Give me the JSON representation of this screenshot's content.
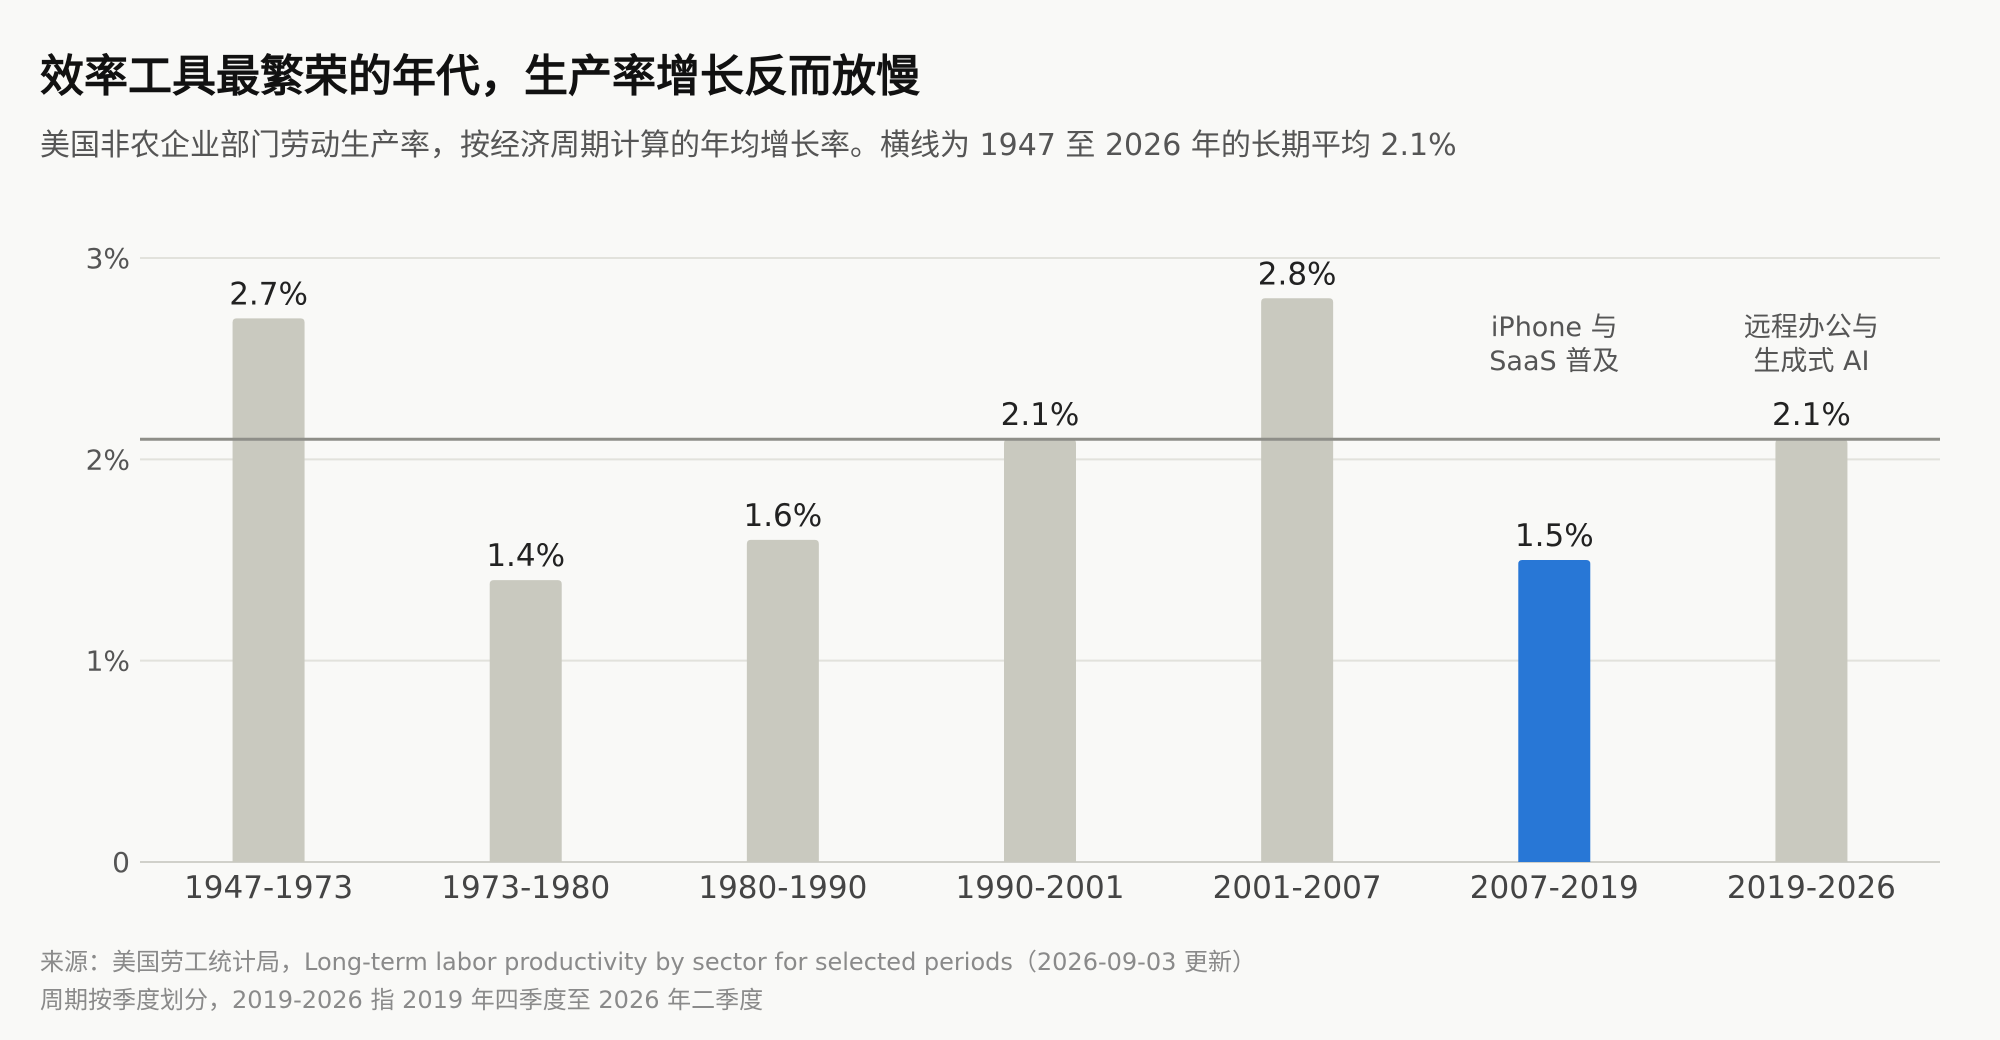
{
  "title": "效率工具最繁荣的年代，生产率增长反而放慢",
  "subtitle": "美国非农企业部门劳动生产率，按经济周期计算的年均增长率。横线为 1947 至 2026 年的长期平均 2.1%",
  "footer": {
    "line1": "来源：美国劳工统计局，Long-term labor productivity by sector for selected periods（2026-09-03 更新）",
    "line2": "周期按季度划分，2019-2026 指 2019 年四季度至 2026 年二季度"
  },
  "colors": {
    "bar_default": "#c9c9bf",
    "bar_highlight": "#2877d6",
    "average_line": "#8e8e88",
    "grid": "#e2e2dc",
    "axis_text": "#555555",
    "value_text": "#222222",
    "annotation_text": "#555555"
  },
  "chart_data": {
    "type": "bar",
    "categories": [
      "1947-1973",
      "1973-1980",
      "1980-1990",
      "1990-2001",
      "2001-2007",
      "2007-2019",
      "2019-2026"
    ],
    "values": [
      2.7,
      1.4,
      1.6,
      2.1,
      2.8,
      1.5,
      2.1
    ],
    "value_labels": [
      "2.7%",
      "1.4%",
      "1.6%",
      "2.1%",
      "2.8%",
      "1.5%",
      "2.1%"
    ],
    "highlight_index": 5,
    "ylim": [
      0,
      3
    ],
    "yticks": [
      {
        "value": 0,
        "label": "0"
      },
      {
        "value": 1,
        "label": "1%"
      },
      {
        "value": 2,
        "label": "2%"
      },
      {
        "value": 3,
        "label": "3%"
      }
    ],
    "reference_line": 2.1,
    "grid": true,
    "annotations": [
      {
        "index": 5,
        "lines": [
          "iPhone 与",
          "SaaS 普及"
        ]
      },
      {
        "index": 6,
        "lines": [
          "远程办公与",
          "生成式 AI"
        ]
      }
    ]
  }
}
